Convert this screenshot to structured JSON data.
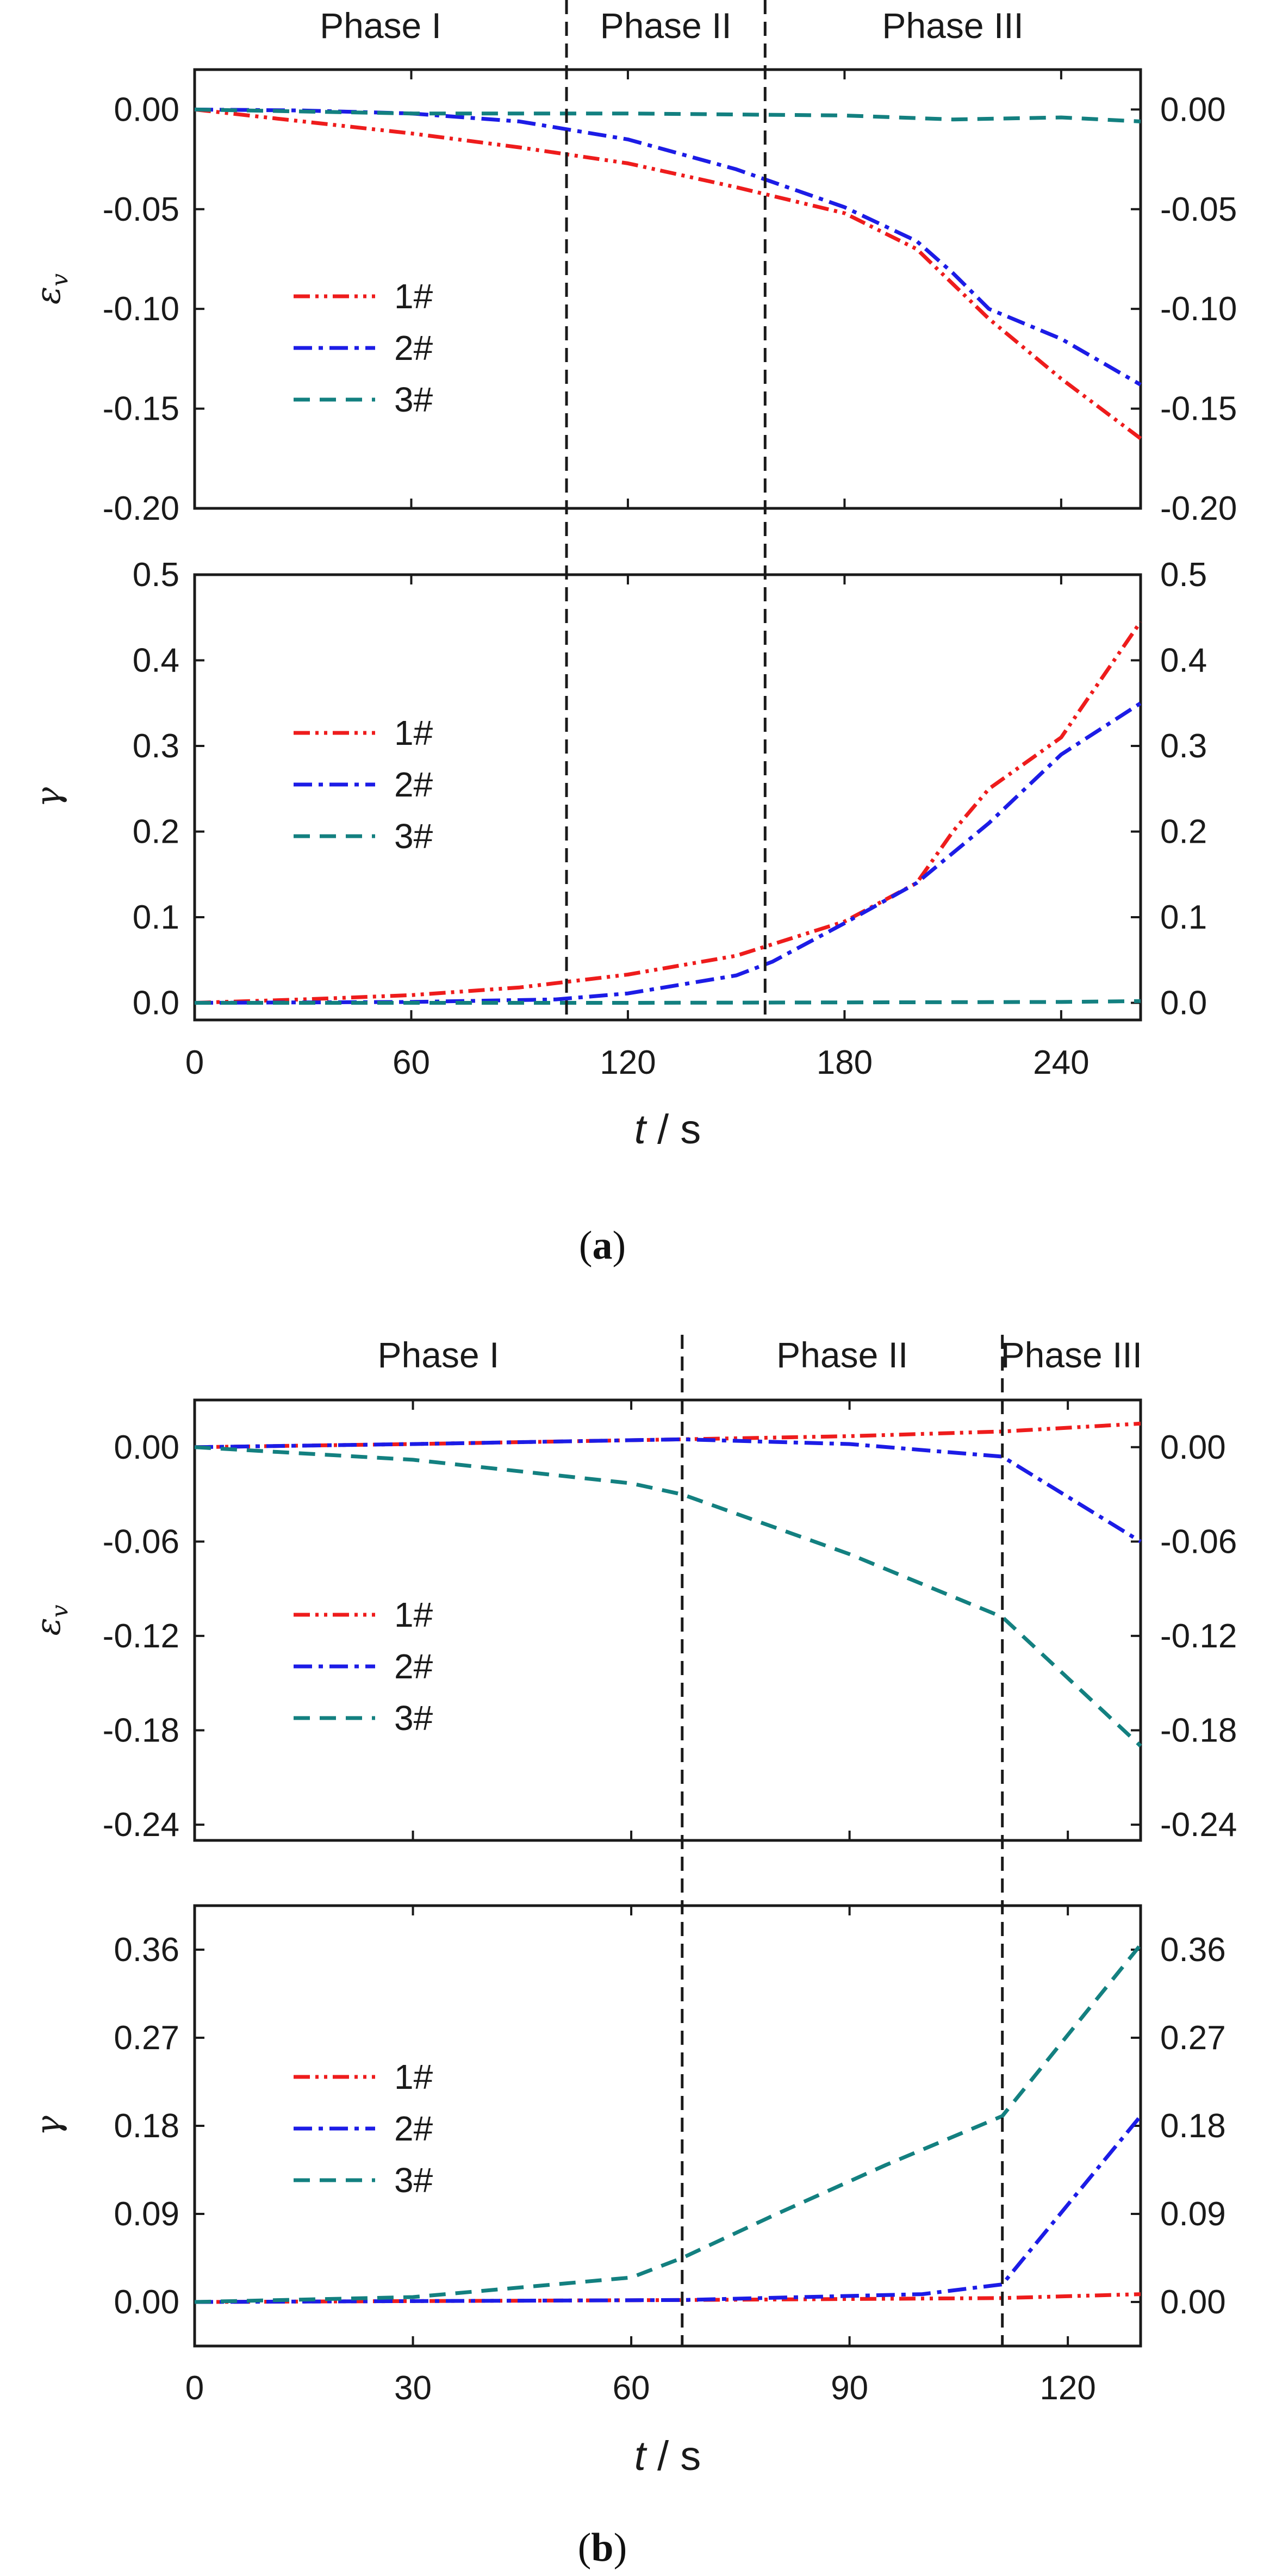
{
  "colors": {
    "s1": "#ee1c1c",
    "s2": "#1c1ce6",
    "s3": "#138080",
    "axis": "#1a1a1a"
  },
  "line_styles": {
    "s1": "dash-dot-dot",
    "s2": "dash-dot",
    "s3": "dashed"
  },
  "figures": [
    {
      "caption": "(a)",
      "caption_letter": "a",
      "xlabel_var": "t",
      "xlabel_unit": " / s",
      "x_range": [
        0,
        262
      ],
      "x_ticks": [
        0,
        60,
        120,
        180,
        240
      ],
      "phase_boundaries": [
        103,
        158
      ],
      "phases": [
        "Phase I",
        "Phase II",
        "Phase III"
      ],
      "panels": [
        {
          "ylabel": "ε",
          "ylabel_sub": "v",
          "ylim": [
            -0.2,
            0.02
          ],
          "y_ticks": [
            0.0,
            -0.05,
            -0.1,
            -0.15,
            -0.2
          ],
          "y_tick_labels": [
            "0.00",
            "-0.05",
            "-0.10",
            "-0.15",
            "-0.20"
          ],
          "legend": [
            "1#",
            "2#",
            "3#"
          ],
          "series": [
            {
              "name": "1#",
              "x": [
                0,
                30,
                60,
                90,
                120,
                150,
                180,
                200,
                220,
                240,
                262
              ],
              "y": [
                0,
                -0.006,
                -0.012,
                -0.019,
                -0.027,
                -0.039,
                -0.052,
                -0.07,
                -0.105,
                -0.135,
                -0.165
              ]
            },
            {
              "name": "2#",
              "x": [
                0,
                30,
                60,
                90,
                120,
                150,
                180,
                200,
                210,
                220,
                240,
                262
              ],
              "y": [
                0,
                -0.0005,
                -0.002,
                -0.006,
                -0.015,
                -0.03,
                -0.049,
                -0.066,
                -0.082,
                -0.1,
                -0.115,
                -0.138
              ]
            },
            {
              "name": "3#",
              "x": [
                0,
                60,
                120,
                180,
                210,
                240,
                262
              ],
              "y": [
                0,
                -0.002,
                -0.002,
                -0.003,
                -0.005,
                -0.004,
                -0.006
              ]
            }
          ]
        },
        {
          "ylabel": "γ",
          "ylabel_sub": "",
          "ylim": [
            -0.02,
            0.5
          ],
          "y_ticks": [
            0.0,
            0.1,
            0.2,
            0.3,
            0.4,
            0.5
          ],
          "y_tick_labels": [
            "0.0",
            "0.1",
            "0.2",
            "0.3",
            "0.4",
            "0.5"
          ],
          "legend": [
            "1#",
            "2#",
            "3#"
          ],
          "series": [
            {
              "name": "1#",
              "x": [
                0,
                30,
                60,
                90,
                120,
                150,
                180,
                200,
                210,
                220,
                240,
                262
              ],
              "y": [
                0,
                0.004,
                0.009,
                0.018,
                0.033,
                0.055,
                0.095,
                0.14,
                0.2,
                0.25,
                0.31,
                0.445
              ]
            },
            {
              "name": "2#",
              "x": [
                0,
                60,
                100,
                120,
                150,
                160,
                180,
                200,
                220,
                240,
                262
              ],
              "y": [
                0,
                0.001,
                0.004,
                0.011,
                0.032,
                0.048,
                0.093,
                0.14,
                0.21,
                0.29,
                0.35
              ]
            },
            {
              "name": "3#",
              "x": [
                0,
                120,
                240,
                262
              ],
              "y": [
                0,
                0.0,
                0.001,
                0.002
              ]
            }
          ]
        }
      ]
    },
    {
      "caption": "(b)",
      "caption_letter": "b",
      "xlabel_var": "t",
      "xlabel_unit": " / s",
      "x_range": [
        0,
        130
      ],
      "x_ticks": [
        0,
        30,
        60,
        90,
        120
      ],
      "phase_boundaries": [
        67,
        111
      ],
      "phases": [
        "Phase I",
        "Phase II",
        "Phase III"
      ],
      "panels": [
        {
          "ylabel": "ε",
          "ylabel_sub": "v",
          "ylim": [
            -0.25,
            0.03
          ],
          "y_ticks": [
            0.0,
            -0.06,
            -0.12,
            -0.18,
            -0.24
          ],
          "y_tick_labels": [
            "0.00",
            "-0.06",
            "-0.12",
            "-0.18",
            "-0.24"
          ],
          "legend": [
            "1#",
            "2#",
            "3#"
          ],
          "series": [
            {
              "name": "1#",
              "x": [
                0,
                30,
                67,
                90,
                111,
                130
              ],
              "y": [
                0,
                0.002,
                0.005,
                0.007,
                0.01,
                0.015
              ]
            },
            {
              "name": "2#",
              "x": [
                0,
                30,
                67,
                90,
                111,
                130
              ],
              "y": [
                0,
                0.002,
                0.005,
                0.002,
                -0.006,
                -0.06
              ]
            },
            {
              "name": "3#",
              "x": [
                0,
                30,
                60,
                67,
                90,
                111,
                130
              ],
              "y": [
                0,
                -0.008,
                -0.023,
                -0.03,
                -0.068,
                -0.108,
                -0.19
              ]
            }
          ]
        },
        {
          "ylabel": "γ",
          "ylabel_sub": "",
          "ylim": [
            -0.045,
            0.405
          ],
          "y_ticks": [
            0.0,
            0.09,
            0.18,
            0.27,
            0.36
          ],
          "y_tick_labels": [
            "0.00",
            "0.09",
            "0.18",
            "0.27",
            "0.36"
          ],
          "legend": [
            "1#",
            "2#",
            "3#"
          ],
          "series": [
            {
              "name": "1#",
              "x": [
                0,
                67,
                111,
                130
              ],
              "y": [
                0,
                0.002,
                0.004,
                0.008
              ]
            },
            {
              "name": "2#",
              "x": [
                0,
                67,
                100,
                111,
                130
              ],
              "y": [
                0,
                0.002,
                0.008,
                0.018,
                0.19
              ]
            },
            {
              "name": "3#",
              "x": [
                0,
                30,
                60,
                67,
                80,
                95,
                111,
                130
              ],
              "y": [
                0,
                0.005,
                0.025,
                0.045,
                0.09,
                0.14,
                0.19,
                0.365
              ]
            }
          ]
        }
      ]
    }
  ]
}
